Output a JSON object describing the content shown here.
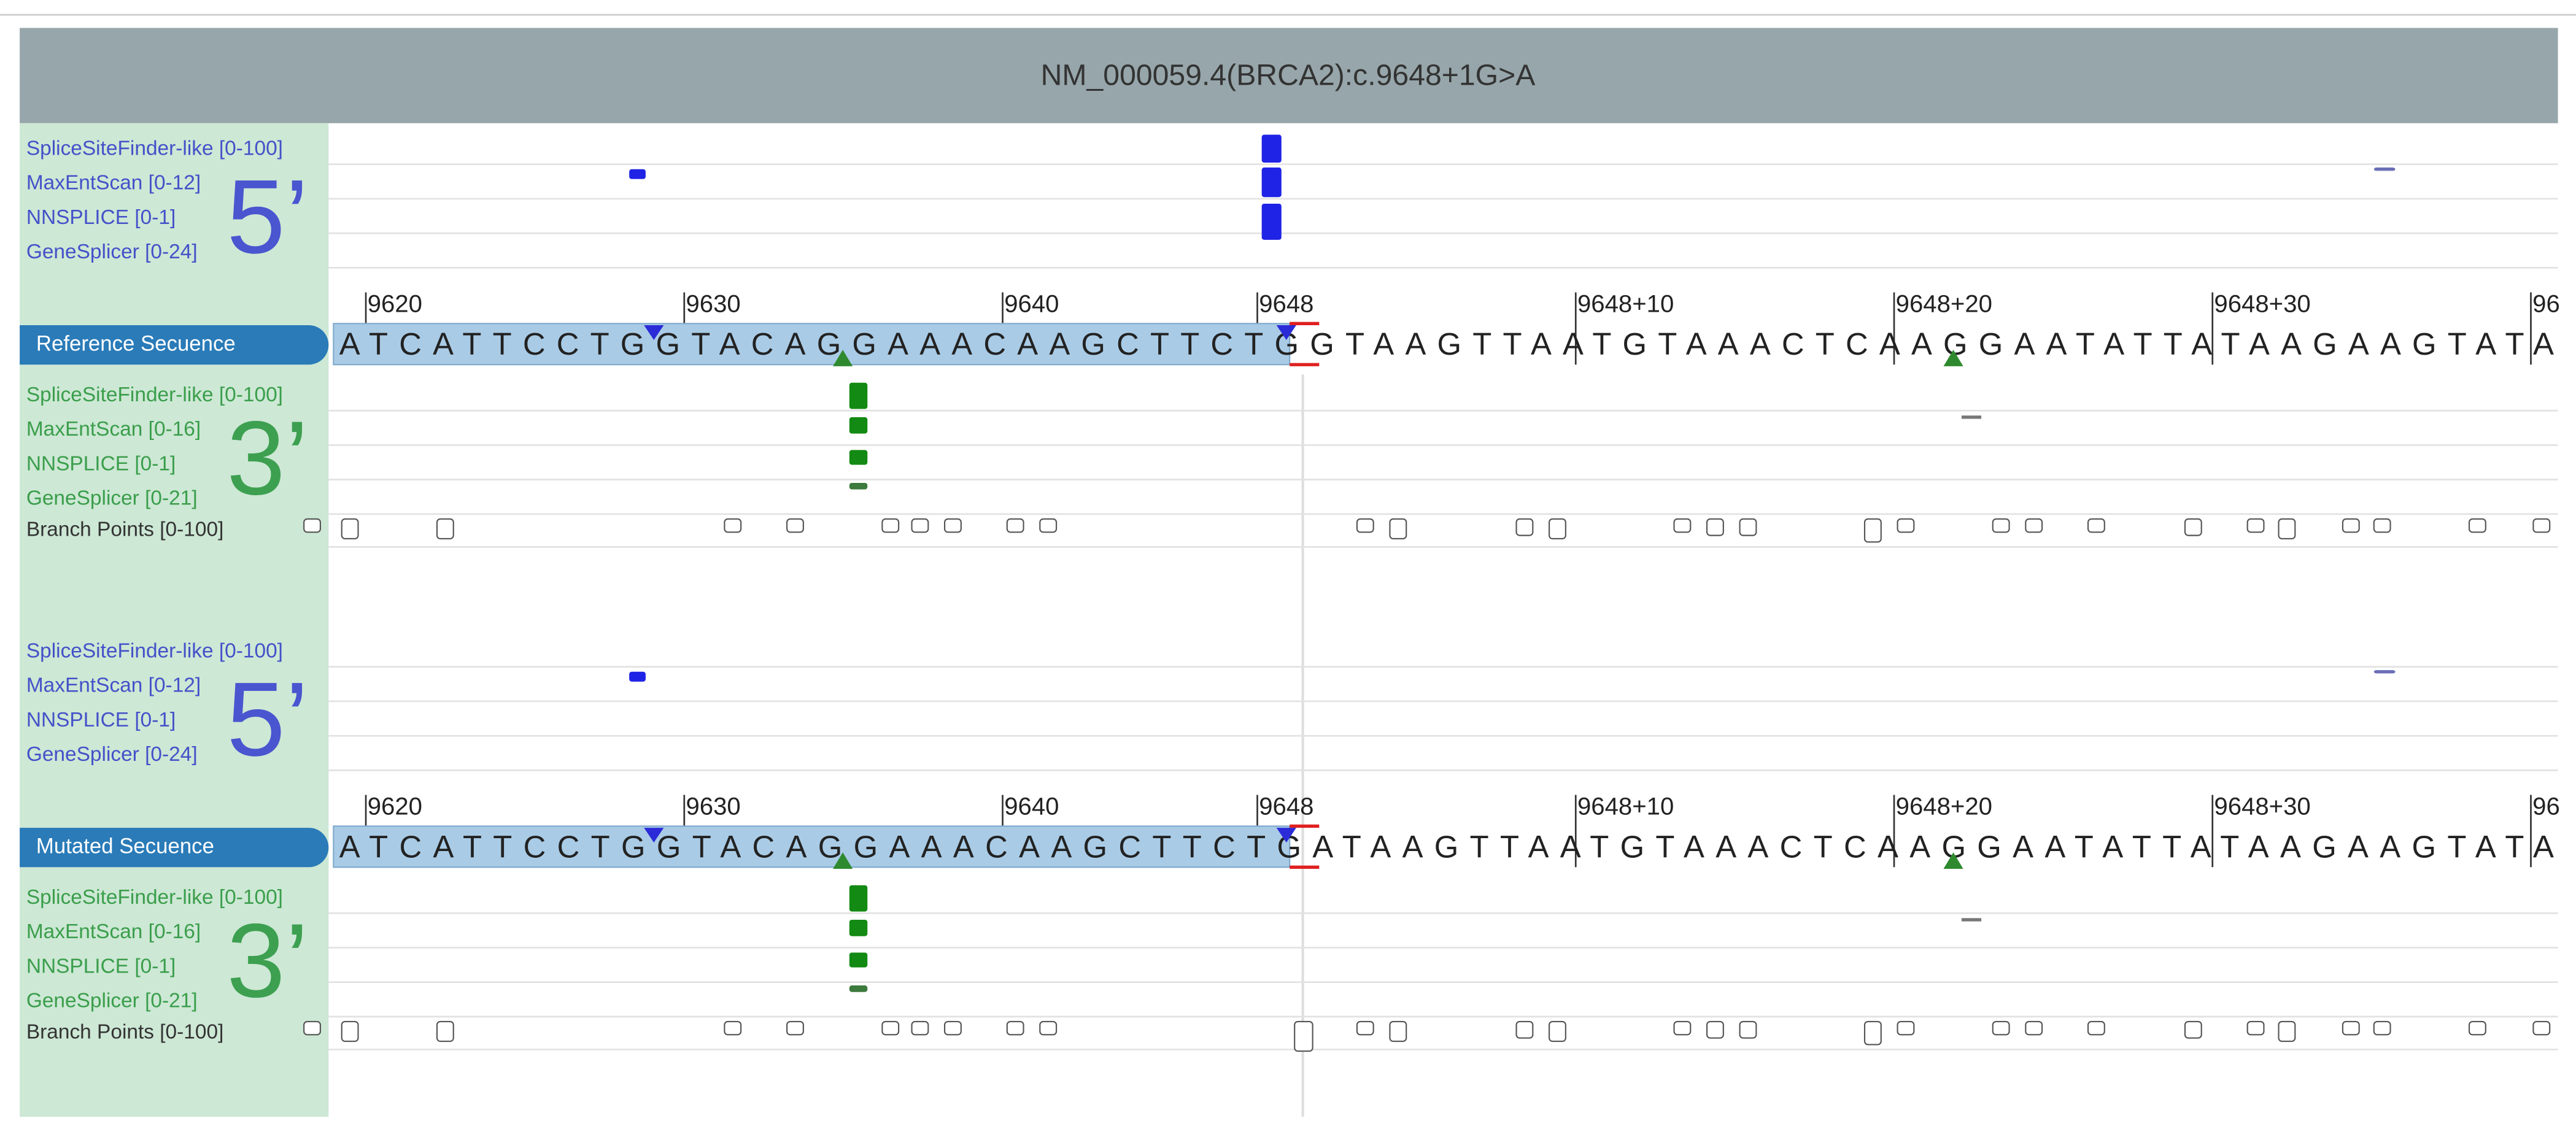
{
  "header": {
    "title": "NM_000059.4(BRCA2):c.9648+1G>A"
  },
  "panels": [
    {
      "five_prime": {
        "label": "5’",
        "tracks": [
          "SpliceSiteFinder-like [0-100]",
          "MaxEntScan [0-12]",
          "NNSPLICE [0-1]",
          "GeneSplicer [0-24]"
        ]
      },
      "sequence": {
        "name": "Reference Secuence",
        "bases": "ATCATTCCTGGTACAGGAAACAAGCTTCTGGTAAGTTAATGTAAACTCAAGGAATATTATAAGAAGTATA",
        "positions": [
          "9620",
          "9630",
          "9640",
          "9648",
          "9648+10",
          "9648+20",
          "9648+30",
          "96"
        ]
      },
      "three_prime": {
        "label": "3’",
        "tracks": [
          "SpliceSiteFinder-like [0-100]",
          "MaxEntScan [0-16]",
          "NNSPLICE [0-1]",
          "GeneSplicer [0-21]"
        ]
      },
      "branch_points": "Branch Points [0-100]"
    },
    {
      "five_prime": {
        "label": "5’",
        "tracks": [
          "SpliceSiteFinder-like [0-100]",
          "MaxEntScan [0-12]",
          "NNSPLICE [0-1]",
          "GeneSplicer [0-24]"
        ]
      },
      "sequence": {
        "name": "Mutated Secuence",
        "bases": "ATCATTCCTGGTACAGGAAACAAGCTTCTGATAAGTTAATGTAAACTCAAGGAATATTATAAGAAGTATA",
        "positions": [
          "9620",
          "9630",
          "9640",
          "9648",
          "9648+10",
          "9648+20",
          "9648+30",
          "96"
        ]
      },
      "three_prime": {
        "label": "3’",
        "tracks": [
          "SpliceSiteFinder-like [0-100]",
          "MaxEntScan [0-16]",
          "NNSPLICE [0-1]",
          "GeneSplicer [0-21]"
        ]
      },
      "branch_points": "Branch Points [0-100]"
    }
  ]
}
